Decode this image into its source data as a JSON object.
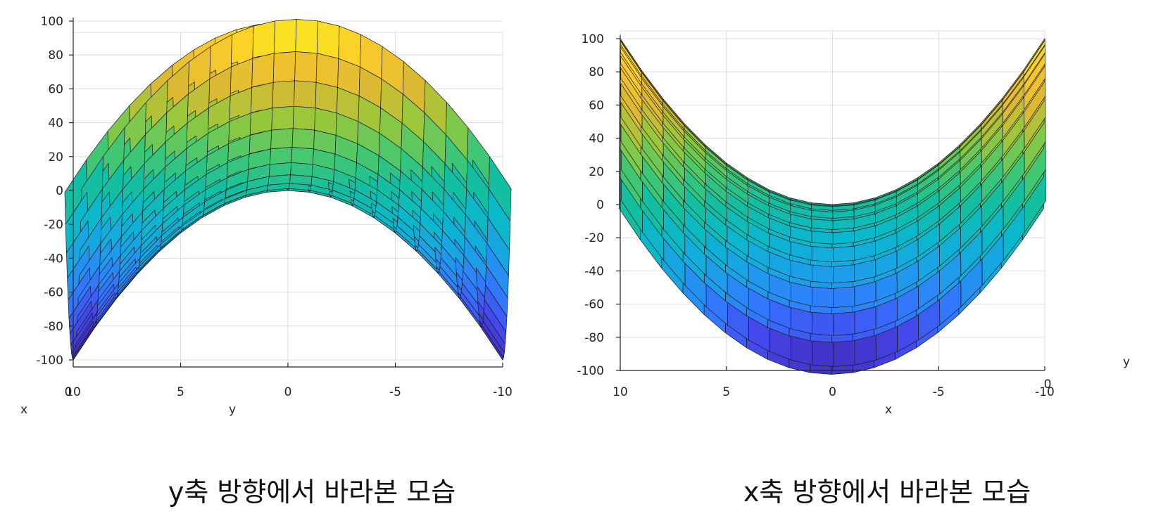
{
  "chart_data": [
    {
      "type": "surface",
      "view": "y-axis direction",
      "caption": "y축 방향에서 바라본 모습",
      "xlabel": "y",
      "corner_label": "x",
      "x_ticks": [
        "10",
        "5",
        "0",
        "-5",
        "-10"
      ],
      "extra_x_tick": "0",
      "z_ticks": [
        "100",
        "80",
        "60",
        "40",
        "20",
        "0",
        "-20",
        "-40",
        "-60",
        "-80",
        "-100"
      ],
      "xlim": [
        10,
        -10
      ],
      "zlim": [
        -100,
        100
      ],
      "grid": true,
      "surface": {
        "x": [
          -10,
          -9,
          -8,
          -7,
          -6,
          -5,
          -4,
          -3,
          -2,
          -1,
          0,
          1,
          2,
          3,
          4,
          5,
          6,
          7,
          8,
          9,
          10
        ],
        "y": [
          -10,
          -9,
          -8,
          -7,
          -6,
          -5,
          -4,
          -3,
          -2,
          -1,
          0,
          1,
          2,
          3,
          4,
          5,
          6,
          7,
          8,
          9,
          10
        ],
        "z_formula": "x^2 - y^2"
      }
    },
    {
      "type": "surface",
      "view": "x-axis direction",
      "caption": "x축 방향에서 바라본 모습",
      "xlabel": "x",
      "corner_label": "y",
      "x_ticks": [
        "10",
        "5",
        "0",
        "-5",
        "-10"
      ],
      "extra_x_tick": "0",
      "z_ticks": [
        "100",
        "80",
        "60",
        "40",
        "20",
        "0",
        "-20",
        "-40",
        "-60",
        "-80",
        "-100"
      ],
      "xlim": [
        10,
        -10
      ],
      "zlim": [
        -100,
        100
      ],
      "grid": true,
      "surface": {
        "x": [
          -10,
          -9,
          -8,
          -7,
          -6,
          -5,
          -4,
          -3,
          -2,
          -1,
          0,
          1,
          2,
          3,
          4,
          5,
          6,
          7,
          8,
          9,
          10
        ],
        "y": [
          -10,
          -9,
          -8,
          -7,
          -6,
          -5,
          -4,
          -3,
          -2,
          -1,
          0,
          1,
          2,
          3,
          4,
          5,
          6,
          7,
          8,
          9,
          10
        ],
        "z_formula": "x^2 - y^2"
      }
    }
  ],
  "colormap": "parula"
}
